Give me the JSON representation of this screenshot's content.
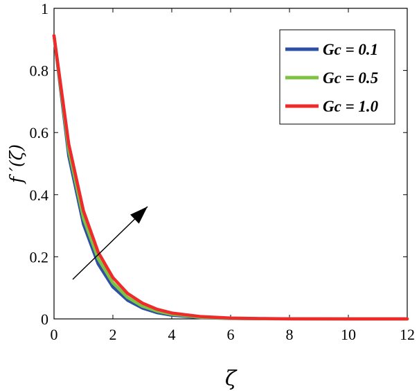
{
  "chart_data": {
    "type": "line",
    "xlabel": "ζ",
    "ylabel": "f ′(ζ)",
    "xlim": [
      0,
      12
    ],
    "ylim": [
      0,
      1
    ],
    "xticks": [
      0,
      2,
      4,
      6,
      8,
      10,
      12
    ],
    "yticks": [
      0,
      0.2,
      0.4,
      0.6,
      0.8,
      1
    ],
    "xtick_labels": [
      "0",
      "2",
      "4",
      "6",
      "8",
      "10",
      "12"
    ],
    "ytick_labels": [
      "0",
      "0.2",
      "0.4",
      "0.6",
      "0.8",
      "1"
    ],
    "grid": false,
    "legend_position": "top-right",
    "annotation": "arrow indicating increasing Gc",
    "x": [
      0,
      0.5,
      1,
      1.5,
      2,
      2.5,
      3,
      3.5,
      4,
      5,
      6,
      7,
      8,
      9,
      10,
      11,
      12
    ],
    "series": [
      {
        "name": "Gc = 0.1",
        "color": "#2E4FA3",
        "values": [
          0.912,
          0.525,
          0.305,
          0.177,
          0.103,
          0.06,
          0.035,
          0.02,
          0.012,
          0.004,
          0.0014,
          0.0005,
          0.0002,
          0.0001,
          0.0,
          0.0,
          0.0
        ]
      },
      {
        "name": "Gc = 0.5",
        "color": "#7DC242",
        "values": [
          0.912,
          0.543,
          0.324,
          0.194,
          0.116,
          0.069,
          0.041,
          0.025,
          0.015,
          0.005,
          0.0019,
          0.0007,
          0.0002,
          0.0001,
          0.0,
          0.0,
          0.0
        ]
      },
      {
        "name": "Gc = 1.0",
        "color": "#EE2A2A",
        "values": [
          0.912,
          0.563,
          0.348,
          0.215,
          0.133,
          0.082,
          0.051,
          0.031,
          0.019,
          0.0074,
          0.0028,
          0.0011,
          0.0004,
          0.0002,
          0.0001,
          0.0,
          0.0
        ]
      }
    ]
  }
}
